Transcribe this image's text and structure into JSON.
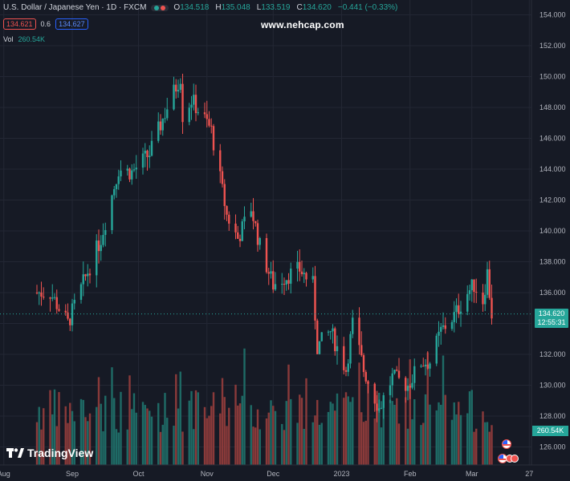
{
  "symbol": {
    "title": "U.S. Dollar / Japanese Yen · 1D · FXCM",
    "open_label": "O",
    "open": "134.518",
    "high_label": "H",
    "high": "135.048",
    "low_label": "L",
    "low": "133.519",
    "close_label": "C",
    "close": "134.620",
    "change": "−0.441 (−0.33%)"
  },
  "quote": {
    "sell": "134.621",
    "spread": "0.6",
    "buy": "134.627"
  },
  "volume": {
    "label": "Vol",
    "value": "260.54K"
  },
  "watermark": "www.nehcap.com",
  "logo": "TradingView",
  "price_axis": {
    "ticks": [
      "154.000",
      "152.000",
      "150.000",
      "148.000",
      "146.000",
      "144.000",
      "142.000",
      "140.000",
      "138.000",
      "136.000",
      "134.000",
      "132.000",
      "130.000",
      "128.000",
      "126.000"
    ],
    "last_price": "134.620",
    "countdown": "12:55:31",
    "volume_tag": "260.54K"
  },
  "time_axis": {
    "ticks": [
      "Aug",
      "Sep",
      "Oct",
      "Nov",
      "Dec",
      "2023",
      "Feb",
      "Mar",
      "27"
    ]
  },
  "colors": {
    "up": "#26a69a",
    "down": "#ef5350",
    "up_vol": "#1e6b66",
    "down_vol": "#8a3a3a",
    "background": "#161a25",
    "grid": "#232734",
    "text": "#d1d4dc"
  },
  "chart_data": {
    "type": "candlestick",
    "ylim": [
      125,
      155
    ],
    "x_labels": [
      "Aug",
      "Sep",
      "Oct",
      "Nov",
      "Dec",
      "2023",
      "Feb",
      "Mar",
      "27"
    ],
    "last_price": 134.62,
    "volume_last": "260.54K",
    "anchors": [
      {
        "date": "2022-08-22",
        "price": 136.0
      },
      {
        "date": "2022-08-30",
        "price": 134.0
      },
      {
        "date": "2022-09-07",
        "price": 137.0
      },
      {
        "date": "2022-09-14",
        "price": 139.5
      },
      {
        "date": "2022-09-22",
        "price": 144.0
      },
      {
        "date": "2022-09-28",
        "price": 143.8
      },
      {
        "date": "2022-10-06",
        "price": 145.0
      },
      {
        "date": "2022-10-14",
        "price": 148.0
      },
      {
        "date": "2022-10-20",
        "price": 150.0
      },
      {
        "date": "2022-10-21",
        "price": 147.5
      },
      {
        "date": "2022-10-25",
        "price": 148.5
      },
      {
        "date": "2022-11-01",
        "price": 147.0
      },
      {
        "date": "2022-11-03",
        "price": 146.5
      },
      {
        "date": "2022-11-10",
        "price": 141.0
      },
      {
        "date": "2022-11-15",
        "price": 139.5
      },
      {
        "date": "2022-11-21",
        "price": 141.5
      },
      {
        "date": "2022-11-25",
        "price": 139.0
      },
      {
        "date": "2022-12-01",
        "price": 136.5
      },
      {
        "date": "2022-12-06",
        "price": 137.0
      },
      {
        "date": "2022-12-13",
        "price": 137.5
      },
      {
        "date": "2022-12-19",
        "price": 136.5
      },
      {
        "date": "2022-12-21",
        "price": 132.5
      },
      {
        "date": "2022-12-27",
        "price": 133.5
      },
      {
        "date": "2023-01-03",
        "price": 131.0
      },
      {
        "date": "2023-01-06",
        "price": 134.0
      },
      {
        "date": "2023-01-11",
        "price": 131.0
      },
      {
        "date": "2023-01-18",
        "price": 128.5
      },
      {
        "date": "2023-01-24",
        "price": 130.5
      },
      {
        "date": "2023-01-31",
        "price": 130.0
      },
      {
        "date": "2023-02-06",
        "price": 131.5
      },
      {
        "date": "2023-02-10",
        "price": 131.5
      },
      {
        "date": "2023-02-15",
        "price": 133.5
      },
      {
        "date": "2023-02-21",
        "price": 134.5
      },
      {
        "date": "2023-02-27",
        "price": 136.0
      },
      {
        "date": "2023-03-02",
        "price": 136.5
      },
      {
        "date": "2023-03-06",
        "price": 135.5
      },
      {
        "date": "2023-03-08",
        "price": 137.3
      },
      {
        "date": "2023-03-10",
        "price": 134.6
      }
    ]
  }
}
